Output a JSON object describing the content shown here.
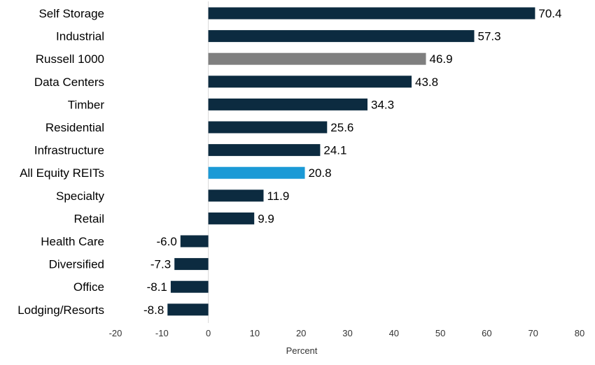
{
  "chart_data": {
    "type": "bar",
    "orientation": "horizontal",
    "categories": [
      "Self Storage",
      "Industrial",
      "Russell 1000",
      "Data Centers",
      "Timber",
      "Residential",
      "Infrastructure",
      "All Equity REITs",
      "Specialty",
      "Retail",
      "Health Care",
      "Diversified",
      "Office",
      "Lodging/Resorts"
    ],
    "values": [
      70.4,
      57.3,
      46.9,
      43.8,
      34.3,
      25.6,
      24.1,
      20.8,
      11.9,
      9.9,
      -6.0,
      -7.3,
      -8.1,
      -8.8
    ],
    "value_labels": [
      "70.4",
      "57.3",
      "46.9",
      "43.8",
      "34.3",
      "25.6",
      "24.1",
      "20.8",
      "11.9",
      "9.9",
      "-6.0",
      "-7.3",
      "-8.1",
      "-8.8"
    ],
    "bar_colors": [
      "#0c2b40",
      "#0c2b40",
      "#7f7f7f",
      "#0c2b40",
      "#0c2b40",
      "#0c2b40",
      "#0c2b40",
      "#1b9ad6",
      "#0c2b40",
      "#0c2b40",
      "#0c2b40",
      "#0c2b40",
      "#0c2b40",
      "#0c2b40"
    ],
    "xlabel": "Percent",
    "xlim": [
      -20,
      80
    ],
    "xticks": [
      "-20",
      "-10",
      "0",
      "10",
      "20",
      "30",
      "40",
      "50",
      "60",
      "70",
      "80"
    ],
    "xtick_values": [
      -20,
      -10,
      0,
      10,
      20,
      30,
      40,
      50,
      60,
      70,
      80
    ],
    "grid": false,
    "zero_line_color": "#d9d9d9"
  }
}
